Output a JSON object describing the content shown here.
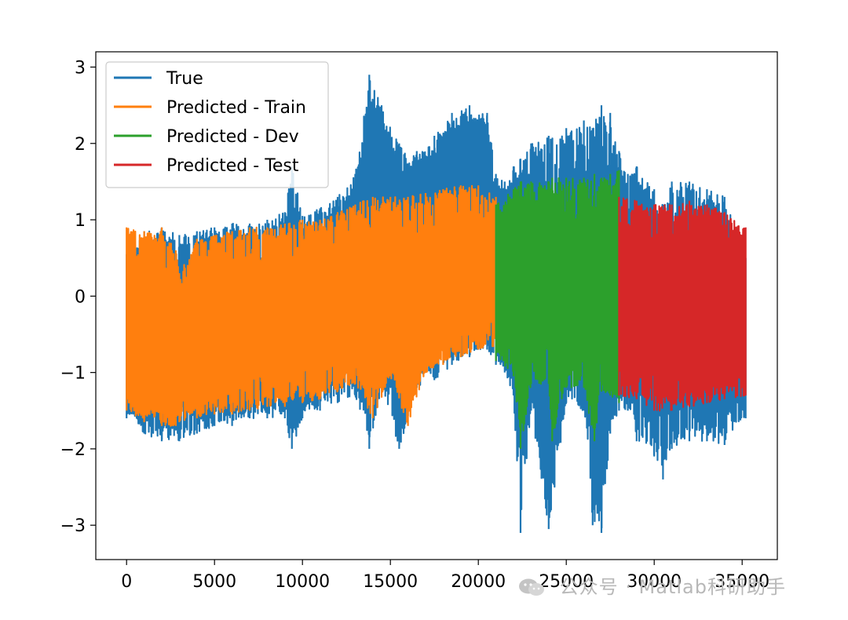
{
  "chart_data": {
    "type": "line",
    "title": "",
    "xlabel": "",
    "ylabel": "",
    "xlim": [
      -1750,
      37000
    ],
    "ylim": [
      -3.45,
      3.2
    ],
    "xticks": [
      0,
      5000,
      10000,
      15000,
      20000,
      25000,
      30000,
      35000
    ],
    "xtick_labels": [
      "0",
      "5000",
      "10000",
      "15000",
      "20000",
      "25000",
      "30000",
      "35000"
    ],
    "yticks": [
      -3,
      -2,
      -1,
      0,
      1,
      2,
      3
    ],
    "ytick_labels": [
      "−3",
      "−2",
      "−1",
      "0",
      "1",
      "2",
      "3"
    ],
    "grid": false,
    "legend_position": "upper-left",
    "series": [
      {
        "name": "True",
        "color": "#1f77b4",
        "x_range": [
          0,
          35200
        ],
        "envelope": {
          "x": [
            0,
            1000,
            2000,
            3000,
            4000,
            5000,
            6000,
            7000,
            8000,
            9000,
            9400,
            10000,
            11000,
            12000,
            13000,
            13800,
            14500,
            15500,
            16500,
            17500,
            18500,
            19500,
            20500,
            21000,
            21500,
            22000,
            22400,
            23000,
            24000,
            25000,
            26000,
            26500,
            27000,
            27500,
            28000,
            28500,
            29000,
            30000,
            30500,
            31000,
            32000,
            33000,
            34000,
            35200
          ],
          "upper": [
            0.55,
            0.85,
            0.9,
            0.8,
            0.85,
            0.9,
            0.95,
            0.95,
            1.0,
            1.1,
            1.7,
            1.05,
            1.15,
            1.3,
            1.6,
            2.9,
            2.5,
            2.0,
            1.9,
            2.1,
            2.4,
            2.5,
            2.4,
            1.6,
            1.5,
            1.7,
            1.8,
            2.0,
            2.1,
            2.2,
            2.3,
            2.2,
            2.5,
            2.4,
            1.9,
            1.6,
            1.7,
            1.4,
            1.2,
            1.5,
            1.5,
            1.4,
            1.3,
            0.5
          ],
          "lower": [
            -1.6,
            -1.8,
            -1.9,
            -1.9,
            -1.8,
            -1.7,
            -1.7,
            -1.6,
            -1.6,
            -1.6,
            -2.0,
            -1.6,
            -1.5,
            -1.4,
            -1.3,
            -2.0,
            -1.2,
            -2.0,
            -1.2,
            -1.1,
            -0.9,
            -0.8,
            -0.7,
            -0.9,
            -1.0,
            -1.3,
            -3.1,
            -1.5,
            -3.05,
            -1.4,
            -1.5,
            -3.0,
            -3.1,
            -1.8,
            -1.5,
            -1.5,
            -1.9,
            -2.1,
            -2.4,
            -2.0,
            -1.9,
            -1.9,
            -1.95,
            -1.6
          ]
        }
      },
      {
        "name": "Predicted - Train",
        "color": "#ff7f0e",
        "x_range": [
          0,
          21000
        ],
        "envelope": {
          "x": [
            0,
            1000,
            2000,
            2800,
            3000,
            4000,
            5000,
            6000,
            7000,
            8000,
            9000,
            10000,
            11000,
            12000,
            13000,
            14000,
            15000,
            16000,
            17000,
            18000,
            19000,
            20000,
            21000
          ],
          "upper": [
            0.9,
            0.85,
            0.9,
            0.6,
            0.3,
            0.75,
            0.8,
            0.85,
            0.9,
            0.9,
            0.95,
            1.0,
            1.0,
            1.1,
            1.2,
            1.3,
            1.3,
            1.3,
            1.35,
            1.4,
            1.45,
            1.45,
            1.3
          ],
          "lower": [
            -1.5,
            -1.65,
            -1.7,
            -1.7,
            -1.65,
            -1.6,
            -1.55,
            -1.55,
            -1.5,
            -1.45,
            -1.45,
            -1.4,
            -1.35,
            -1.25,
            -1.15,
            -1.6,
            -1.05,
            -1.7,
            -1.0,
            -0.9,
            -0.8,
            -0.7,
            -0.65
          ]
        }
      },
      {
        "name": "Predicted - Dev",
        "color": "#2ca02c",
        "x_range": [
          21000,
          28000
        ],
        "envelope": {
          "x": [
            21000,
            22000,
            22400,
            23000,
            24000,
            24200,
            25000,
            26000,
            26600,
            27000,
            27500,
            28000
          ],
          "upper": [
            1.2,
            1.4,
            1.5,
            1.5,
            1.5,
            1.55,
            1.55,
            1.55,
            1.6,
            1.55,
            1.6,
            1.65
          ],
          "lower": [
            -0.85,
            -1.05,
            -2.0,
            -1.15,
            -1.15,
            -1.9,
            -1.2,
            -1.2,
            -1.9,
            -1.25,
            -1.3,
            -1.4
          ]
        }
      },
      {
        "name": "Predicted - Test",
        "color": "#d62728",
        "x_range": [
          28000,
          35200
        ],
        "envelope": {
          "x": [
            28000,
            29000,
            30000,
            31000,
            32000,
            33000,
            34000,
            35200
          ],
          "upper": [
            1.3,
            1.25,
            1.2,
            1.2,
            1.25,
            1.2,
            1.1,
            0.9
          ],
          "lower": [
            -1.3,
            -1.35,
            -1.5,
            -1.5,
            -1.45,
            -1.4,
            -1.35,
            -1.3
          ]
        }
      }
    ]
  },
  "watermark": {
    "icon": "wechat-icon",
    "text": "公众号 · Matlab科研助手"
  }
}
